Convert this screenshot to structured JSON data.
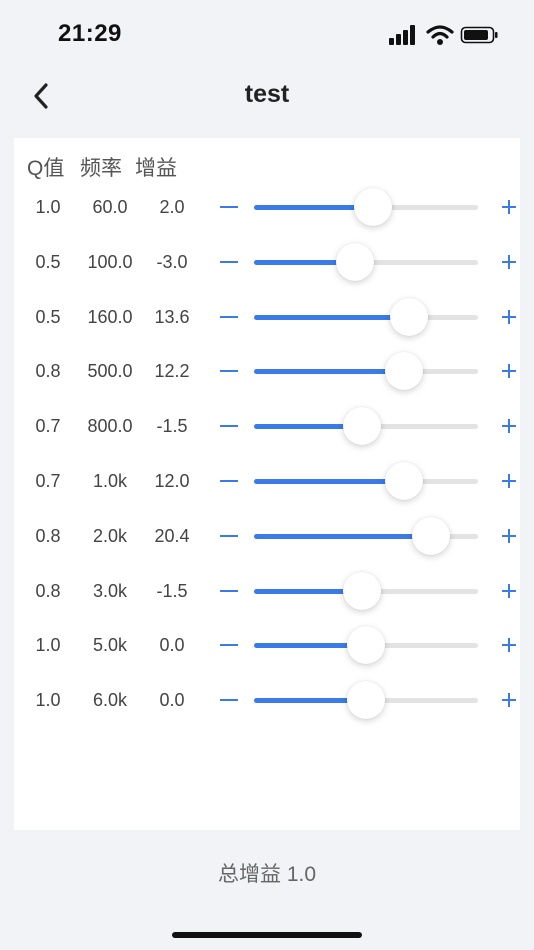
{
  "status_bar": {
    "time": "21:29",
    "icons": [
      "signal-icon",
      "wifi-icon",
      "battery-icon"
    ]
  },
  "nav": {
    "title": "test",
    "back_icon": "chevron-left-icon"
  },
  "table": {
    "headers": {
      "q": "Q值",
      "freq": "频率",
      "gain": "增益"
    },
    "bands": [
      {
        "q": "1.0",
        "freq": "60.0",
        "gain": "2.0",
        "level": 0.53
      },
      {
        "q": "0.5",
        "freq": "100.0",
        "gain": "-3.0",
        "level": 0.45
      },
      {
        "q": "0.5",
        "freq": "160.0",
        "gain": "13.6",
        "level": 0.69
      },
      {
        "q": "0.8",
        "freq": "500.0",
        "gain": "12.2",
        "level": 0.67
      },
      {
        "q": "0.7",
        "freq": "800.0",
        "gain": "-1.5",
        "level": 0.48
      },
      {
        "q": "0.7",
        "freq": "1.0k",
        "gain": "12.0",
        "level": 0.67
      },
      {
        "q": "0.8",
        "freq": "2.0k",
        "gain": "20.4",
        "level": 0.79
      },
      {
        "q": "0.8",
        "freq": "3.0k",
        "gain": "-1.5",
        "level": 0.48
      },
      {
        "q": "1.0",
        "freq": "5.0k",
        "gain": "0.0",
        "level": 0.5
      },
      {
        "q": "1.0",
        "freq": "6.0k",
        "gain": "0.0",
        "level": 0.5
      }
    ]
  },
  "footer": {
    "total_gain": "总增益 1.0"
  },
  "colors": {
    "accent": "#3a7be8",
    "track": "#e3e3e3",
    "background": "#f2f3f7",
    "card": "#ffffff"
  }
}
